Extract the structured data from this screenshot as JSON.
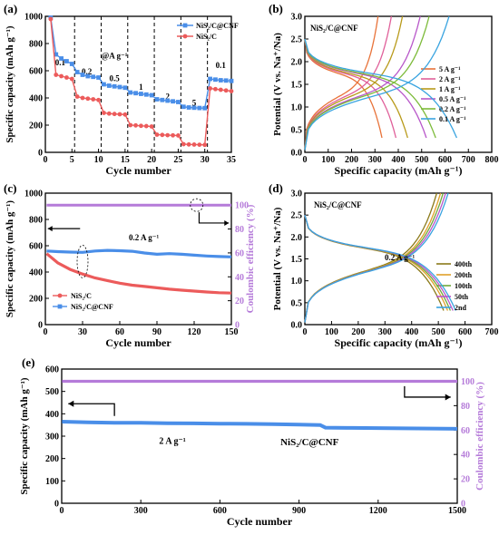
{
  "chart_data": [
    {
      "panel": "(a)",
      "type": "line",
      "xlabel": "Cycle number",
      "ylabel": "Specific capacity (mAh g⁻¹)",
      "xlim": [
        0,
        35
      ],
      "ylim": [
        0,
        1000
      ],
      "xticks": [
        0,
        5,
        10,
        15,
        20,
        25,
        30,
        35
      ],
      "yticks": [
        0,
        200,
        400,
        600,
        800,
        1000
      ],
      "legend": [
        "NiS₂/C@CNF",
        "NiS₂/C"
      ],
      "rate_labels": [
        "0.1",
        "0.2",
        "@A g⁻¹",
        "0.5",
        "1",
        "2",
        "5",
        "0.1"
      ],
      "series": [
        {
          "name": "NiS₂/C@CNF",
          "color": "#4a8ee8",
          "x": [
            1,
            2,
            3,
            4,
            5,
            6,
            7,
            8,
            9,
            10,
            11,
            12,
            13,
            14,
            15,
            16,
            17,
            18,
            19,
            20,
            21,
            22,
            23,
            24,
            25,
            26,
            27,
            28,
            29,
            30,
            31,
            32,
            33,
            34,
            35
          ],
          "y": [
            990,
            720,
            690,
            670,
            650,
            590,
            570,
            560,
            555,
            550,
            500,
            490,
            485,
            480,
            475,
            440,
            435,
            430,
            425,
            420,
            390,
            385,
            380,
            375,
            370,
            335,
            330,
            328,
            326,
            325,
            540,
            535,
            530,
            528,
            525
          ]
        },
        {
          "name": "NiS₂/C",
          "color": "#ec5b5b",
          "x": [
            1,
            2,
            3,
            4,
            5,
            6,
            7,
            8,
            9,
            10,
            11,
            12,
            13,
            14,
            15,
            16,
            17,
            18,
            19,
            20,
            21,
            22,
            23,
            24,
            25,
            26,
            27,
            28,
            29,
            30,
            31,
            32,
            33,
            34,
            35
          ],
          "y": [
            980,
            570,
            560,
            550,
            540,
            410,
            400,
            395,
            390,
            385,
            290,
            285,
            282,
            280,
            278,
            200,
            198,
            195,
            193,
            190,
            130,
            128,
            126,
            125,
            124,
            60,
            58,
            57,
            56,
            55,
            470,
            465,
            460,
            455,
            450
          ]
        }
      ]
    },
    {
      "panel": "(b)",
      "type": "line",
      "title": "NiS₂/C@CNF",
      "xlabel": "Specific capacity (mAh g⁻¹)",
      "ylabel": "Potential (V vs. Na⁺/Na)",
      "xlim": [
        0,
        800
      ],
      "ylim": [
        0,
        3.0
      ],
      "xticks": [
        0,
        100,
        200,
        300,
        400,
        500,
        600,
        700,
        800
      ],
      "yticks": [
        0.0,
        0.5,
        1.0,
        1.5,
        2.0,
        2.5,
        3.0
      ],
      "series": [
        {
          "name": "5 A g⁻¹",
          "color": "#e8733a",
          "capacity": 330
        },
        {
          "name": "2 A g⁻¹",
          "color": "#e0609a",
          "capacity": 390
        },
        {
          "name": "1 A g⁻¹",
          "color": "#b89a1a",
          "capacity": 440
        },
        {
          "name": "0.5 A g⁻¹",
          "color": "#b857c9",
          "capacity": 520
        },
        {
          "name": "0.2 A g⁻¹",
          "color": "#7dbb3a",
          "capacity": 560
        },
        {
          "name": "0.1 A g⁻¹",
          "color": "#3aa4e0",
          "capacity": 650
        }
      ]
    },
    {
      "panel": "(c)",
      "type": "line",
      "xlabel": "Cycle number",
      "ylabel": "Specific capacity (mAh g⁻¹)",
      "y2label": "Coulombic efficiency (%)",
      "xlim": [
        0,
        150
      ],
      "ylim": [
        0,
        1000
      ],
      "y2lim": [
        0,
        110
      ],
      "xticks": [
        0,
        30,
        60,
        90,
        120,
        150
      ],
      "yticks": [
        0,
        200,
        400,
        600,
        800,
        1000
      ],
      "y2ticks": [
        0,
        20,
        40,
        60,
        80,
        100
      ],
      "annotation": "0.2 A g⁻¹",
      "series": [
        {
          "name": "NiS₂/C",
          "color": "#ec5b5b",
          "x": [
            1,
            10,
            20,
            30,
            40,
            50,
            60,
            70,
            80,
            90,
            100,
            110,
            120,
            130,
            140,
            150
          ],
          "y": [
            540,
            470,
            420,
            385,
            355,
            335,
            315,
            300,
            290,
            280,
            270,
            262,
            255,
            248,
            243,
            240
          ]
        },
        {
          "name": "NiS₂/C@CNF",
          "color": "#4a8ee8",
          "x": [
            1,
            10,
            20,
            30,
            40,
            50,
            60,
            70,
            80,
            90,
            100,
            110,
            120,
            130,
            140,
            150
          ],
          "y": [
            560,
            555,
            552,
            550,
            560,
            565,
            562,
            558,
            545,
            535,
            540,
            535,
            528,
            522,
            518,
            515
          ]
        },
        {
          "name": "Coulombic efficiency",
          "color": "#b57bd9",
          "axis": "y2",
          "x": [
            1,
            150
          ],
          "y": [
            100,
            100
          ]
        }
      ]
    },
    {
      "panel": "(d)",
      "type": "line",
      "title": "NiS₂/C@CNF",
      "annotation": "0.2 A g⁻¹",
      "xlabel": "Specific capacity (mAh g⁻¹)",
      "ylabel": "Potential (V vs. Na⁺/Na)",
      "xlim": [
        0,
        700
      ],
      "ylim": [
        0,
        3.0
      ],
      "xticks": [
        0,
        100,
        200,
        300,
        400,
        500,
        600,
        700
      ],
      "yticks": [
        0.0,
        0.5,
        1.0,
        1.5,
        2.0,
        2.5,
        3.0
      ],
      "series": [
        {
          "name": "400th",
          "color": "#8b7a1a",
          "capacity": 520
        },
        {
          "name": "200th",
          "color": "#e0a02a",
          "capacity": 535
        },
        {
          "name": "100th",
          "color": "#6fa83a",
          "capacity": 545
        },
        {
          "name": "50th",
          "color": "#b857c9",
          "capacity": 555
        },
        {
          "name": "2nd",
          "color": "#3aa4e0",
          "capacity": 565
        }
      ]
    },
    {
      "panel": "(e)",
      "type": "line",
      "xlabel": "Cycle number",
      "ylabel": "Specific capacity (mAh g⁻¹)",
      "y2label": "Coulombic efficiency (%)",
      "xlim": [
        0,
        1500
      ],
      "ylim": [
        0,
        600
      ],
      "y2lim": [
        0,
        110
      ],
      "xticks": [
        0,
        300,
        600,
        900,
        1200,
        1500
      ],
      "yticks": [
        0,
        100,
        200,
        300,
        400,
        500,
        600
      ],
      "y2ticks": [
        0,
        20,
        40,
        60,
        80,
        100
      ],
      "annotation": "2 A g⁻¹",
      "series_label": "NiS₂/C@CNF",
      "series": [
        {
          "name": "NiS₂/C@CNF",
          "color": "#4a8ee8",
          "x": [
            1,
            100,
            200,
            300,
            400,
            500,
            600,
            700,
            800,
            900,
            980,
            1000,
            1100,
            1200,
            1300,
            1400,
            1500
          ],
          "y": [
            365,
            362,
            360,
            360,
            358,
            357,
            356,
            355,
            354,
            352,
            350,
            338,
            337,
            336,
            335,
            334,
            333
          ]
        },
        {
          "name": "Coulombic efficiency",
          "color": "#b57bd9",
          "axis": "y2",
          "x": [
            1,
            1500
          ],
          "y": [
            100,
            100
          ]
        }
      ]
    }
  ]
}
